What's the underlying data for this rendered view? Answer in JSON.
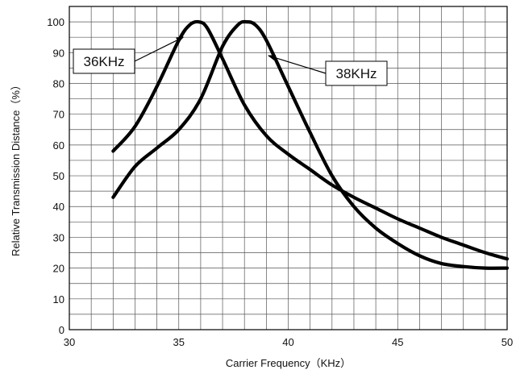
{
  "chart_data": {
    "type": "line",
    "title": "",
    "xlabel": "Carrier Frequency（KHz）",
    "ylabel": "Relative Transmission Distance（%）",
    "xlim": [
      30,
      50
    ],
    "ylim": [
      0,
      105
    ],
    "x_ticks": [
      "30",
      "35",
      "40",
      "45",
      "50"
    ],
    "y_ticks": [
      "0",
      "10",
      "20",
      "30",
      "40",
      "50",
      "60",
      "70",
      "80",
      "90",
      "100"
    ],
    "grid": true,
    "series": [
      {
        "name": "36KHz",
        "x": [
          32,
          33,
          34,
          35,
          35.5,
          35.9,
          36.3,
          37,
          38,
          39,
          40,
          41,
          42,
          43,
          44,
          45,
          46,
          47,
          48,
          49,
          50
        ],
        "y": [
          58,
          66,
          79,
          94,
          99,
          100,
          98,
          88,
          73,
          63,
          57,
          52,
          47,
          43,
          39.5,
          36,
          33,
          30,
          27.5,
          25,
          23
        ]
      },
      {
        "name": "38KHz",
        "x": [
          32,
          33,
          34,
          35,
          36,
          37,
          37.7,
          38.1,
          38.5,
          39,
          40,
          41,
          42,
          43,
          44,
          45,
          46,
          47,
          48,
          49,
          50
        ],
        "y": [
          43,
          53,
          59,
          65,
          75,
          92,
          99,
          100,
          99,
          94,
          79,
          64,
          50,
          40,
          33,
          28,
          24,
          21.5,
          20.5,
          20,
          20
        ]
      }
    ],
    "callouts": [
      {
        "series": "36KHz",
        "text": "36KHz",
        "arrow_to": [
          35.2,
          95
        ]
      },
      {
        "series": "38KHz",
        "text": "38KHz",
        "arrow_to": [
          39.1,
          89
        ]
      }
    ]
  }
}
